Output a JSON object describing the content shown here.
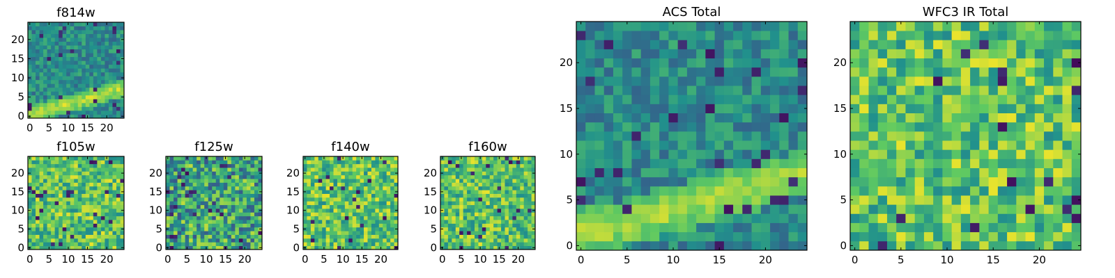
{
  "figure": {
    "description": "Grid of 2D image cutouts per filter plus summed totals",
    "colormap": [
      "#440154",
      "#3b528b",
      "#21918c",
      "#5ec962",
      "#fde725"
    ]
  },
  "chart_data": [
    {
      "id": "f814w",
      "type": "heatmap",
      "title": "f814w",
      "grid": [
        25,
        25
      ],
      "xlim": [
        -0.5,
        24.5
      ],
      "ylim": [
        -0.5,
        24.5
      ],
      "xticks": [
        0,
        5,
        10,
        15,
        20
      ],
      "yticks": [
        0,
        5,
        10,
        15,
        20
      ],
      "pattern": "diagonal-band",
      "band": {
        "x0": 0,
        "y0": 0.5,
        "slope": 0.28,
        "width": 2.3
      },
      "seed": 11
    },
    {
      "id": "f105w",
      "type": "heatmap",
      "title": "f105w",
      "grid": [
        25,
        25
      ],
      "xlim": [
        -0.5,
        24.5
      ],
      "ylim": [
        -0.5,
        24.5
      ],
      "xticks": [
        0,
        5,
        10,
        15,
        20
      ],
      "yticks": [
        0,
        5,
        10,
        15,
        20
      ],
      "pattern": "noise-bright",
      "seed": 23
    },
    {
      "id": "f125w",
      "type": "heatmap",
      "title": "f125w",
      "grid": [
        25,
        25
      ],
      "xlim": [
        -0.5,
        24.5
      ],
      "ylim": [
        -0.5,
        24.5
      ],
      "xticks": [
        0,
        5,
        10,
        15,
        20
      ],
      "yticks": [
        0,
        5,
        10,
        15,
        20
      ],
      "pattern": "noise-mixed",
      "seed": 37
    },
    {
      "id": "f140w",
      "type": "heatmap",
      "title": "f140w",
      "grid": [
        25,
        25
      ],
      "xlim": [
        -0.5,
        24.5
      ],
      "ylim": [
        -0.5,
        24.5
      ],
      "xticks": [
        0,
        5,
        10,
        15,
        20
      ],
      "yticks": [
        0,
        5,
        10,
        15,
        20
      ],
      "pattern": "noise-bright",
      "seed": 41
    },
    {
      "id": "f160w",
      "type": "heatmap",
      "title": "f160w",
      "grid": [
        25,
        25
      ],
      "xlim": [
        -0.5,
        24.5
      ],
      "ylim": [
        -0.5,
        24.5
      ],
      "xticks": [
        0,
        5,
        10,
        15,
        20
      ],
      "yticks": [
        0,
        5,
        10,
        15,
        20
      ],
      "pattern": "noise-bright",
      "seed": 53
    },
    {
      "id": "acs-total",
      "type": "heatmap",
      "title": "ACS Total",
      "grid": [
        25,
        25
      ],
      "xlim": [
        -0.5,
        24.5
      ],
      "ylim": [
        -0.5,
        24.5
      ],
      "xticks": [
        0,
        5,
        10,
        15,
        20
      ],
      "yticks": [
        0,
        5,
        10,
        15,
        20
      ],
      "pattern": "diagonal-band",
      "band": {
        "x0": 0,
        "y0": 1.2,
        "slope": 0.28,
        "width": 2.6
      },
      "seed": 67
    },
    {
      "id": "wfc3-ir-total",
      "type": "heatmap",
      "title": "WFC3 IR Total",
      "grid": [
        25,
        25
      ],
      "xlim": [
        -0.5,
        24.5
      ],
      "ylim": [
        -0.5,
        24.5
      ],
      "xticks": [
        0,
        5,
        10,
        15,
        20
      ],
      "yticks": [
        0,
        5,
        10,
        15,
        20
      ],
      "pattern": "noise-bright",
      "seed": 79
    }
  ]
}
